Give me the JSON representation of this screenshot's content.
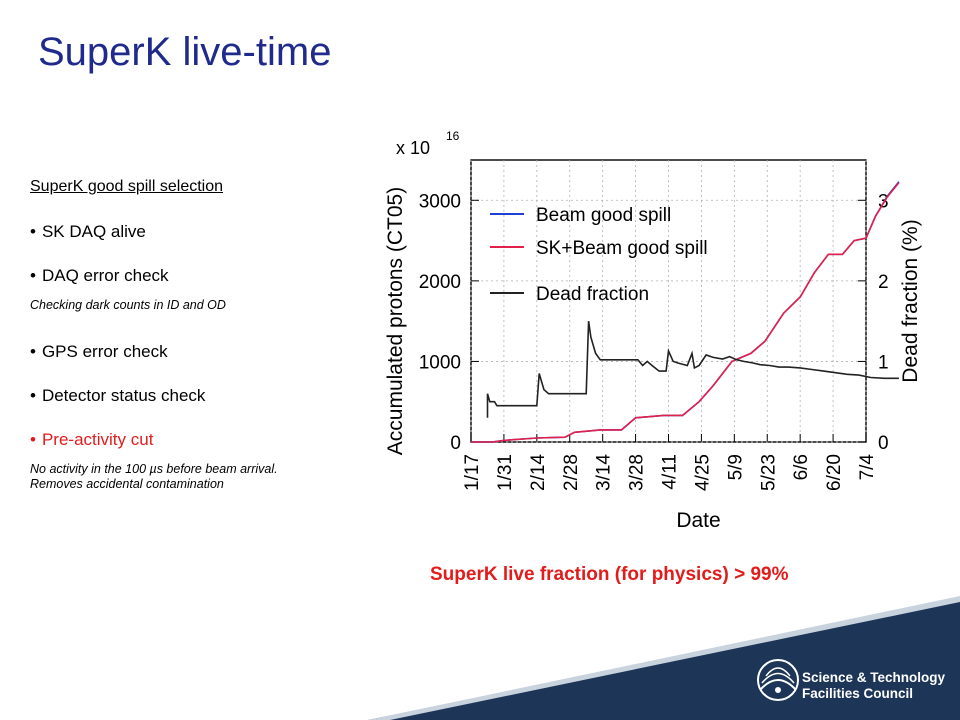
{
  "slide": {
    "title": "SuperK live-time",
    "section_heading": "SuperK good spill selection",
    "bullets": [
      "SK DAQ alive",
      "DAQ error check",
      "GPS error check",
      "Detector status check",
      "Pre-activity cut"
    ],
    "note_daq": "Checking dark counts in ID and OD",
    "note_preactivity_line1": "No activity in the 100 µs before beam arrival.",
    "note_preactivity_line2": "Removes accidental contamination",
    "caption": "SuperK live fraction (for physics) > 99%",
    "logo": {
      "line1": "Science & Technology",
      "line2": "Facilities Council"
    },
    "colors": {
      "title": "#1f2a8c",
      "highlight": "#e31b1b",
      "footer": "#1d3557"
    }
  },
  "chart_data": {
    "type": "line",
    "xlabel": "Date",
    "ylabel": "Accumulated protons (CT05)",
    "ylabel_right": "Dead fraction (%)",
    "y_multiplier": "x 10",
    "y_multiplier_exp": "16",
    "x_ticks": [
      "1/17",
      "1/31",
      "2/14",
      "2/28",
      "3/14",
      "3/28",
      "4/11",
      "4/25",
      "5/9",
      "5/23",
      "6/6",
      "6/20",
      "7/4"
    ],
    "x_range": [
      "1/17",
      "7/4"
    ],
    "ylim": [
      0,
      3500
    ],
    "y_ticks": [
      0,
      1000,
      2000,
      3000
    ],
    "ylim_right": [
      0,
      3.5
    ],
    "y_ticks_right": [
      0,
      1,
      2,
      3
    ],
    "grid": true,
    "legend_position": "top-left",
    "series": [
      {
        "name": "Beam good spill",
        "axis": "left",
        "color": "#1f3fd6",
        "points": [
          [
            0,
            0
          ],
          [
            9,
            0
          ],
          [
            14,
            20
          ],
          [
            28,
            50
          ],
          [
            40,
            60
          ],
          [
            44,
            120
          ],
          [
            55,
            150
          ],
          [
            64,
            150
          ],
          [
            70,
            300
          ],
          [
            82,
            330
          ],
          [
            90,
            330
          ],
          [
            97,
            500
          ],
          [
            103,
            700
          ],
          [
            111,
            1000
          ],
          [
            119,
            1100
          ],
          [
            125,
            1250
          ],
          [
            133,
            1600
          ],
          [
            140,
            1800
          ],
          [
            146,
            2100
          ],
          [
            152,
            2330
          ],
          [
            158,
            2330
          ],
          [
            163,
            2500
          ],
          [
            168,
            2530
          ],
          [
            172,
            2800
          ],
          [
            177,
            3050
          ],
          [
            182,
            3230
          ]
        ]
      },
      {
        "name": "SK+Beam good spill",
        "axis": "left",
        "color": "#e3204a",
        "points": [
          [
            0,
            0
          ],
          [
            9,
            0
          ],
          [
            14,
            20
          ],
          [
            28,
            50
          ],
          [
            40,
            60
          ],
          [
            44,
            120
          ],
          [
            55,
            150
          ],
          [
            64,
            150
          ],
          [
            70,
            300
          ],
          [
            82,
            330
          ],
          [
            90,
            330
          ],
          [
            97,
            500
          ],
          [
            103,
            700
          ],
          [
            111,
            1000
          ],
          [
            119,
            1100
          ],
          [
            125,
            1250
          ],
          [
            133,
            1600
          ],
          [
            140,
            1800
          ],
          [
            146,
            2100
          ],
          [
            152,
            2330
          ],
          [
            158,
            2330
          ],
          [
            163,
            2500
          ],
          [
            168,
            2530
          ],
          [
            172,
            2800
          ],
          [
            177,
            3040
          ],
          [
            182,
            3220
          ]
        ]
      },
      {
        "name": "Dead fraction",
        "axis": "right",
        "color": "#222222",
        "points": [
          [
            7,
            0.3
          ],
          [
            7,
            0.6
          ],
          [
            8,
            0.5
          ],
          [
            10,
            0.5
          ],
          [
            11,
            0.45
          ],
          [
            28,
            0.45
          ],
          [
            29,
            0.85
          ],
          [
            31,
            0.65
          ],
          [
            33,
            0.6
          ],
          [
            49,
            0.6
          ],
          [
            50,
            1.5
          ],
          [
            51,
            1.3
          ],
          [
            53,
            1.1
          ],
          [
            55,
            1.02
          ],
          [
            71,
            1.02
          ],
          [
            73,
            0.95
          ],
          [
            75,
            1.0
          ],
          [
            77,
            0.95
          ],
          [
            80,
            0.88
          ],
          [
            83,
            0.88
          ],
          [
            84,
            1.13
          ],
          [
            86,
            1.0
          ],
          [
            88,
            0.98
          ],
          [
            92,
            0.95
          ],
          [
            94,
            1.1
          ],
          [
            95,
            0.92
          ],
          [
            97,
            0.95
          ],
          [
            100,
            1.08
          ],
          [
            103,
            1.05
          ],
          [
            107,
            1.03
          ],
          [
            110,
            1.06
          ],
          [
            113,
            1.02
          ],
          [
            116,
            1.0
          ],
          [
            120,
            0.98
          ],
          [
            123,
            0.96
          ],
          [
            127,
            0.95
          ],
          [
            131,
            0.93
          ],
          [
            135,
            0.93
          ],
          [
            140,
            0.92
          ],
          [
            145,
            0.9
          ],
          [
            150,
            0.88
          ],
          [
            155,
            0.86
          ],
          [
            160,
            0.84
          ],
          [
            165,
            0.83
          ],
          [
            170,
            0.8
          ],
          [
            176,
            0.79
          ],
          [
            182,
            0.79
          ]
        ]
      }
    ]
  }
}
